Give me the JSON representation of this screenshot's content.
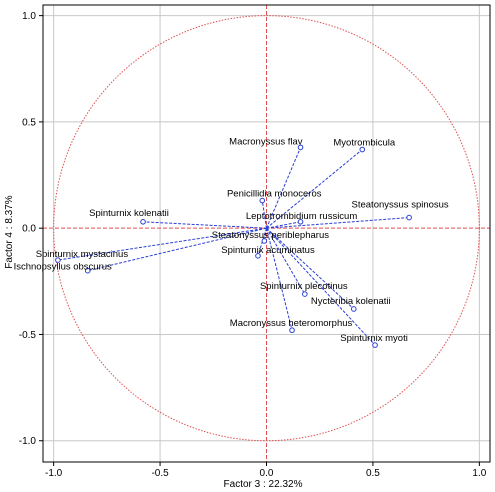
{
  "chart_data": {
    "type": "scatter",
    "xlabel": "Factor 3 : 22.32%",
    "ylabel": "Factor 4 : 8.37%",
    "xlim": [
      -1.05,
      1.05
    ],
    "ylim": [
      -1.1,
      1.05
    ],
    "grid": true,
    "unit_circle": true,
    "x_ticks": [
      -1.0,
      -0.5,
      0.0,
      0.5,
      1.0
    ],
    "x_tick_labels": [
      "-1.0",
      "-0.5",
      "0.0",
      "0.5",
      "1.0"
    ],
    "y_ticks": [
      1.0,
      0.5,
      0.0,
      -0.5,
      -1.0
    ],
    "y_tick_labels": [
      "1.0",
      "0.5",
      "0.0",
      "-0.5",
      "-1.0"
    ],
    "points": [
      {
        "label": "Macronyssus flav",
        "x": 0.16,
        "y": 0.38
      },
      {
        "label": "Myotrombicula",
        "x": 0.45,
        "y": 0.37
      },
      {
        "label": "Penicillidia monoceros",
        "x": -0.02,
        "y": 0.13
      },
      {
        "label": "Leptotrombidium russicum",
        "x": 0.16,
        "y": 0.03
      },
      {
        "label": "Steatonyssus spinosus",
        "x": 0.67,
        "y": 0.05
      },
      {
        "label": "Spinturnix kolenatii",
        "x": -0.58,
        "y": 0.03
      },
      {
        "label": "Steatonyssus periblepharus",
        "x": -0.01,
        "y": -0.06
      },
      {
        "label": "Spinturnix acuminatus",
        "x": -0.04,
        "y": -0.13
      },
      {
        "label": "Spinturnix mystacinus",
        "x": -0.98,
        "y": -0.15
      },
      {
        "label": "Ischnopsyllus obscurus",
        "x": -0.84,
        "y": -0.2
      },
      {
        "label": "Spinturnix plecotinus",
        "x": 0.18,
        "y": -0.31
      },
      {
        "label": "Nycteribia kolenatii",
        "x": 0.41,
        "y": -0.38
      },
      {
        "label": "Macronyssus heteromorphus",
        "x": 0.12,
        "y": -0.48
      },
      {
        "label": "Spinturnix myoti",
        "x": 0.51,
        "y": -0.55
      }
    ]
  },
  "colors": {
    "vector": "#2a3fd4",
    "marker": "#2a3fd4",
    "circle": "#e05050",
    "zero_lines": "#e05050",
    "grid": "#c8c8c8",
    "frame": "#000000",
    "text": "#000000"
  }
}
